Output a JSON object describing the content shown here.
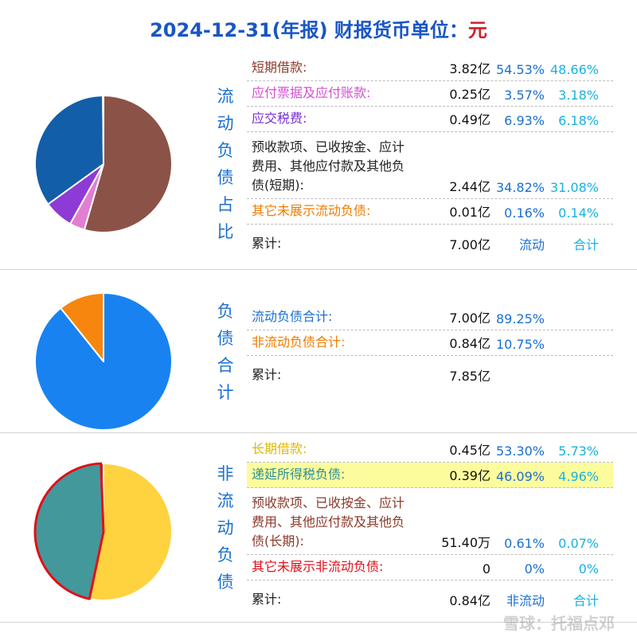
{
  "header": {
    "title": "2024-12-31(年报)   财报货币单位：",
    "unit": "元"
  },
  "sections": {
    "current": {
      "vertical_label": [
        "流",
        "动",
        "负",
        "债",
        "占",
        "比"
      ],
      "rows": [
        {
          "label": "短期借款:",
          "value": "3.82亿",
          "pct1": "54.53%",
          "pct2": "48.66%"
        },
        {
          "label": "应付票据及应付账款:",
          "value": "0.25亿",
          "pct1": "3.57%",
          "pct2": "3.18%"
        },
        {
          "label": "应交税费:",
          "value": "0.49亿",
          "pct1": "6.93%",
          "pct2": "6.18%"
        },
        {
          "label": "预收款项、已收按金、应计费用、其他应付款及其他负债(短期):",
          "value": "2.44亿",
          "pct1": "34.82%",
          "pct2": "31.08%"
        },
        {
          "label": "其它未展示流动负债:",
          "value": "0.01亿",
          "pct1": "0.16%",
          "pct2": "0.14%"
        }
      ],
      "total": {
        "label": "累计:",
        "value": "7.00亿",
        "col1": "流动",
        "col2": "合计"
      }
    },
    "total": {
      "vertical_label": [
        "负",
        "债",
        "合",
        "计"
      ],
      "rows": [
        {
          "label": "流动负债合计:",
          "value": "7.00亿",
          "pct1": "89.25%"
        },
        {
          "label": "非流动负债合计:",
          "value": "0.84亿",
          "pct1": "10.75%"
        }
      ],
      "total": {
        "label": "累计:",
        "value": "7.85亿"
      }
    },
    "noncurrent": {
      "vertical_label": [
        "非",
        "流",
        "动",
        "负",
        "债"
      ],
      "rows": [
        {
          "label": "长期借款:",
          "value": "0.45亿",
          "pct1": "53.30%",
          "pct2": "5.73%"
        },
        {
          "label": "递延所得税负债:",
          "value": "0.39亿",
          "pct1": "46.09%",
          "pct2": "4.96%"
        },
        {
          "label": "预收款项、已收按金、应计费用、其他应付款及其他负债(长期):",
          "value": "51.40万",
          "pct1": "0.61%",
          "pct2": "0.07%"
        },
        {
          "label": "其它未展示非流动负债:",
          "value": "0",
          "pct1": "0%",
          "pct2": "0%"
        }
      ],
      "total": {
        "label": "累计:",
        "value": "0.84亿",
        "col1": "非流动",
        "col2": "合计"
      }
    }
  },
  "watermark": "雪球：托福点邓",
  "chart_data": [
    {
      "type": "pie",
      "slices": [
        {
          "label": "短期借款",
          "value": 54.53,
          "color": "#8B5347"
        },
        {
          "label": "应付票据及应付账款",
          "value": 3.57,
          "color": "#E07FD2"
        },
        {
          "label": "应交税费",
          "value": 6.93,
          "color": "#8E3AD6"
        },
        {
          "label": "预收款项、已收按金、应计费用、其他应付款及其他负债(短期)",
          "value": 34.82,
          "color": "#135EA8"
        },
        {
          "label": "其它未展示流动负债",
          "value": 0.16,
          "color": "#F7931E"
        }
      ]
    },
    {
      "type": "pie",
      "slices": [
        {
          "label": "流动负债合计",
          "value": 89.25,
          "color": "#1883F0"
        },
        {
          "label": "非流动负债合计",
          "value": 10.75,
          "color": "#F7860F"
        }
      ]
    },
    {
      "type": "pie",
      "slices": [
        {
          "label": "长期借款",
          "value": 53.3,
          "color": "#FFD23F"
        },
        {
          "label": "递延所得税负债",
          "value": 46.09,
          "color": "#43989B",
          "highlight": true
        },
        {
          "label": "预收款项、已收按金、应计费用、其他应付款及其他负债(长期)",
          "value": 0.61,
          "color": "#7A3E36"
        },
        {
          "label": "其它未展示非流动负债",
          "value": 0,
          "color": "#E0101A"
        }
      ]
    }
  ]
}
